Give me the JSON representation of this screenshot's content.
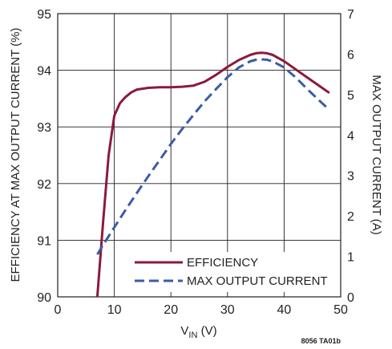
{
  "chart_data": {
    "type": "line",
    "xlabel_main": "V",
    "xlabel_sub": "IN",
    "xlabel_unit": " (V)",
    "ylabel_left": "EFFICIENCY AT MAX OUTPUT CURRENT (%)",
    "ylabel_right": "MAX OUTPUT CURRENT (A)",
    "xlim": [
      0,
      50
    ],
    "ylim_left": [
      90,
      95
    ],
    "ylim_right": [
      0,
      7
    ],
    "x_ticks": [
      "0",
      "10",
      "20",
      "30",
      "40",
      "50"
    ],
    "y_left_ticks": [
      "90",
      "91",
      "92",
      "93",
      "94",
      "95"
    ],
    "y_right_ticks": [
      "0",
      "1",
      "2",
      "3",
      "4",
      "5",
      "6",
      "7"
    ],
    "grid": true,
    "legend_position": "bottom-right",
    "series": [
      {
        "name": "EFFICIENCY",
        "axis": "left",
        "color": "#8b1a3c",
        "style": "solid",
        "x": [
          7,
          8,
          9,
          10,
          11,
          12,
          13,
          14,
          16,
          18,
          20,
          22,
          24,
          26,
          28,
          30,
          32,
          34,
          35,
          36,
          37,
          38,
          40,
          42,
          44,
          46,
          48
        ],
        "y": [
          90.0,
          91.3,
          92.5,
          93.2,
          93.42,
          93.53,
          93.61,
          93.66,
          93.69,
          93.7,
          93.7,
          93.71,
          93.73,
          93.8,
          93.92,
          94.06,
          94.18,
          94.27,
          94.3,
          94.31,
          94.3,
          94.27,
          94.16,
          94.02,
          93.88,
          93.74,
          93.6
        ]
      },
      {
        "name": "MAX OUTPUT CURRENT",
        "axis": "right",
        "color": "#3a5ca8",
        "style": "dashed",
        "x": [
          7,
          8,
          10,
          12,
          14,
          16,
          18,
          20,
          22,
          24,
          26,
          28,
          30,
          32,
          34,
          35,
          36,
          37,
          38,
          40,
          42,
          44,
          46,
          48
        ],
        "y": [
          1.05,
          1.28,
          1.72,
          2.15,
          2.57,
          2.98,
          3.38,
          3.78,
          4.15,
          4.5,
          4.84,
          5.14,
          5.43,
          5.67,
          5.82,
          5.86,
          5.87,
          5.86,
          5.82,
          5.67,
          5.43,
          5.15,
          4.88,
          4.62
        ]
      }
    ],
    "annotation": "8056 TA01b"
  }
}
